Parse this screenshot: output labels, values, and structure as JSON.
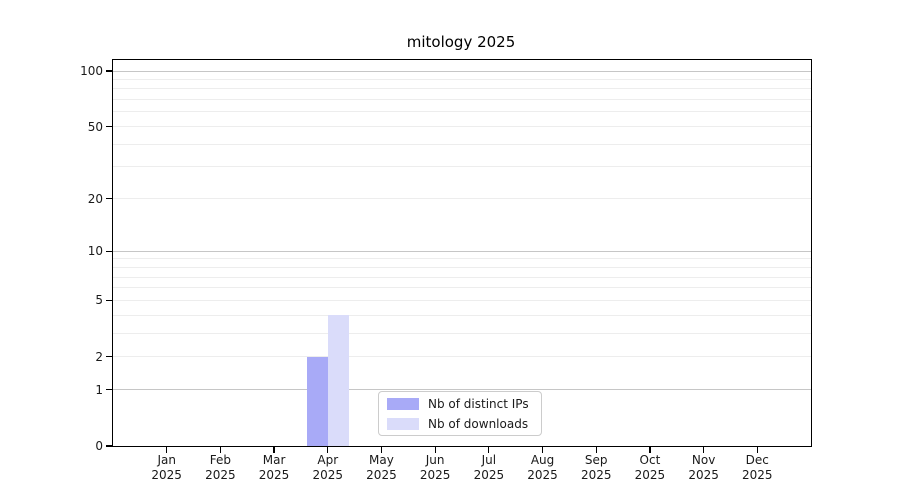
{
  "chart_data": {
    "type": "bar",
    "title": "mitology 2025",
    "categories": [
      "Jan",
      "Feb",
      "Mar",
      "Apr",
      "May",
      "Jun",
      "Jul",
      "Aug",
      "Sep",
      "Oct",
      "Nov",
      "Dec"
    ],
    "year_label": "2025",
    "series": [
      {
        "name": "Nb of distinct IPs",
        "color": "#a8aaf7",
        "values": [
          0,
          0,
          0,
          2,
          0,
          0,
          0,
          0,
          0,
          0,
          0,
          0
        ]
      },
      {
        "name": "Nb of downloads",
        "color": "#dadcfa",
        "values": [
          0,
          0,
          0,
          4,
          0,
          0,
          0,
          0,
          0,
          0,
          0,
          0
        ]
      }
    ],
    "yscale": "log1p",
    "ylim": [
      0,
      100
    ],
    "y_tick_values": [
      0,
      1,
      2,
      5,
      10,
      20,
      50,
      100
    ],
    "grid": {
      "major_values": [
        1,
        10,
        100
      ],
      "minor_values": [
        2,
        3,
        4,
        5,
        6,
        7,
        8,
        9,
        20,
        30,
        40,
        50,
        60,
        70,
        80,
        90
      ],
      "major_color": "#c6c6c6",
      "minor_color": "#ededed"
    },
    "legend": {
      "position": "lower-center"
    },
    "colors": {
      "spine": "#000000",
      "background": "#ffffff",
      "text": "#1a1a1a"
    }
  }
}
